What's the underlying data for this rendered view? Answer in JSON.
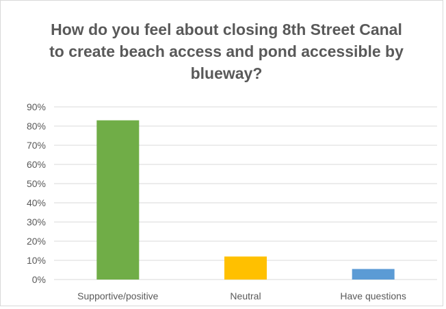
{
  "chart_data": {
    "type": "bar",
    "title": "How do you feel about closing 8th Street Canal to create beach access and pond accessible by blueway?",
    "categories": [
      "Supportive/positive",
      "Neutral",
      "Have questions"
    ],
    "values": [
      83,
      12,
      5.5
    ],
    "bar_colors": [
      "#70ad47",
      "#ffc000",
      "#5b9bd5"
    ],
    "ylim": [
      0,
      90
    ],
    "yticks": [
      0,
      10,
      20,
      30,
      40,
      50,
      60,
      70,
      80,
      90
    ],
    "ytick_labels": [
      "0%",
      "10%",
      "20%",
      "30%",
      "40%",
      "50%",
      "60%",
      "70%",
      "80%",
      "90%"
    ],
    "grid": true,
    "legend": "none",
    "xlabel": "",
    "ylabel": ""
  }
}
